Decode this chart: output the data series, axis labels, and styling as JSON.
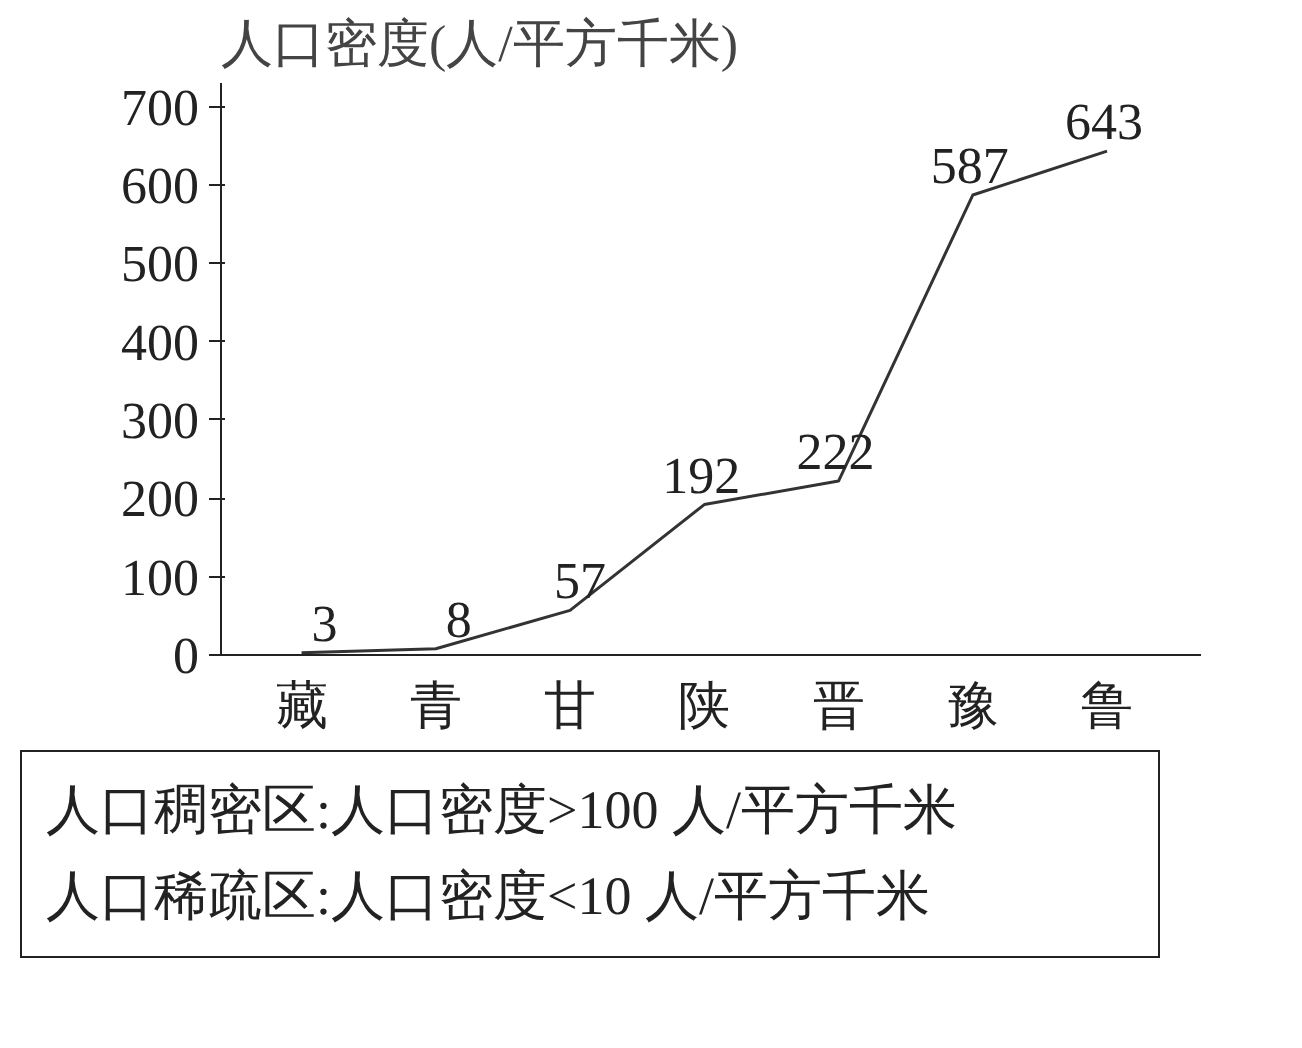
{
  "chart_data": {
    "type": "line",
    "title": "人口密度(人/平方千米)",
    "categories": [
      "藏",
      "青",
      "甘",
      "陕",
      "晋",
      "豫",
      "鲁"
    ],
    "values": [
      3,
      8,
      57,
      192,
      222,
      587,
      643
    ],
    "color": "#333333",
    "data_labels": true,
    "ylim": [
      0,
      730
    ],
    "yticks": [
      0,
      100,
      200,
      300,
      400,
      500,
      600,
      700
    ],
    "grid": false,
    "marker": "none",
    "line_style": "solid",
    "annotations": [
      "人口稠密区:人口密度>100 人/平方千米",
      "人口稀疏区:人口密度<10 人/平方千米"
    ]
  }
}
